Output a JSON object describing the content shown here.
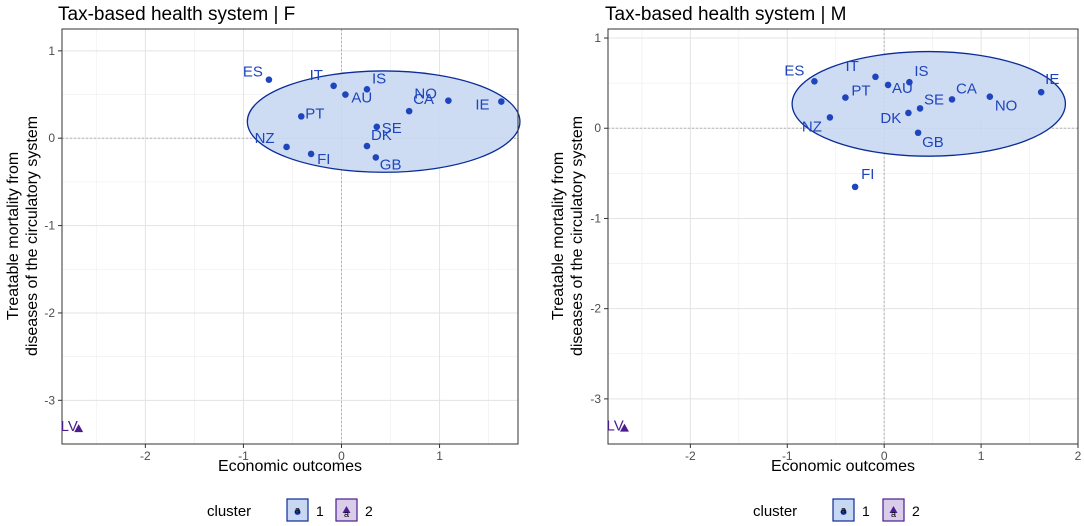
{
  "chart_data": [
    {
      "type": "scatter",
      "title": "Tax-based health system | F",
      "xlabel": "Economic outcomes",
      "ylabel": [
        "Treatable mortality from",
        "diseases of the circulatory system"
      ],
      "xlim": [
        -2.85,
        1.8
      ],
      "ylim": [
        -3.5,
        1.25
      ],
      "xticks": [
        -2,
        -1,
        0,
        1
      ],
      "yticks": [
        -3,
        -2,
        -1,
        0,
        1
      ],
      "ellipse": {
        "cluster": 1,
        "center": [
          0.43,
          0.19
        ],
        "radius_x": 1.39,
        "radius_y": 0.58
      },
      "points": [
        {
          "label": "ES",
          "x": -0.74,
          "y": 0.67,
          "cluster": 1
        },
        {
          "label": "IT",
          "x": -0.08,
          "y": 0.6,
          "cluster": 1
        },
        {
          "label": "IS",
          "x": 0.26,
          "y": 0.56,
          "cluster": 1
        },
        {
          "label": "NO",
          "x": 1.09,
          "y": 0.43,
          "cluster": 1
        },
        {
          "label": "AU",
          "x": 0.04,
          "y": 0.5,
          "cluster": 1
        },
        {
          "label": "PT",
          "x": -0.41,
          "y": 0.25,
          "cluster": 1
        },
        {
          "label": "CA",
          "x": 0.69,
          "y": 0.31,
          "cluster": 1
        },
        {
          "label": "IE",
          "x": 1.63,
          "y": 0.42,
          "cluster": 1
        },
        {
          "label": "NZ",
          "x": -0.56,
          "y": -0.1,
          "cluster": 1
        },
        {
          "label": "DK",
          "x": 0.26,
          "y": -0.09,
          "cluster": 1
        },
        {
          "label": "SE",
          "x": 0.36,
          "y": 0.13,
          "cluster": 1
        },
        {
          "label": "FI",
          "x": -0.31,
          "y": -0.18,
          "cluster": 1
        },
        {
          "label": "GB",
          "x": 0.35,
          "y": -0.22,
          "cluster": 1
        },
        {
          "label": "LV",
          "x": -2.68,
          "y": -3.33,
          "cluster": 2
        }
      ]
    },
    {
      "type": "scatter",
      "title": "Tax-based health system | M",
      "xlabel": "Economic outcomes",
      "ylabel": [
        "Treatable mortality from",
        "diseases of the circulatory system"
      ],
      "xlim": [
        -2.85,
        2.0
      ],
      "ylim": [
        -3.5,
        1.1
      ],
      "xticks": [
        -2,
        -1,
        0,
        1,
        2
      ],
      "yticks": [
        -3,
        -2,
        -1,
        0,
        1
      ],
      "ellipse": {
        "cluster": 1,
        "center": [
          0.46,
          0.27
        ],
        "radius_x": 1.41,
        "radius_y": 0.58
      },
      "points": [
        {
          "label": "ES",
          "x": -0.72,
          "y": 0.52,
          "cluster": 1
        },
        {
          "label": "IT",
          "x": -0.09,
          "y": 0.57,
          "cluster": 1
        },
        {
          "label": "IS",
          "x": 0.26,
          "y": 0.51,
          "cluster": 1
        },
        {
          "label": "IE",
          "x": 1.62,
          "y": 0.4,
          "cluster": 1
        },
        {
          "label": "PT",
          "x": -0.4,
          "y": 0.34,
          "cluster": 1
        },
        {
          "label": "AU",
          "x": 0.04,
          "y": 0.48,
          "cluster": 1
        },
        {
          "label": "CA",
          "x": 0.7,
          "y": 0.32,
          "cluster": 1
        },
        {
          "label": "SE",
          "x": 0.37,
          "y": 0.22,
          "cluster": 1
        },
        {
          "label": "NO",
          "x": 1.09,
          "y": 0.35,
          "cluster": 1
        },
        {
          "label": "NZ",
          "x": -0.56,
          "y": 0.12,
          "cluster": 1
        },
        {
          "label": "DK",
          "x": 0.25,
          "y": 0.17,
          "cluster": 1
        },
        {
          "label": "GB",
          "x": 0.35,
          "y": -0.05,
          "cluster": 1
        },
        {
          "label": "FI",
          "x": -0.3,
          "y": -0.65,
          "cluster": 1
        },
        {
          "label": "LV",
          "x": -2.68,
          "y": -3.33,
          "cluster": 2
        }
      ]
    }
  ],
  "legend": {
    "title": "cluster",
    "items": [
      "1",
      "2"
    ]
  },
  "colors": {
    "cluster1": "#1f45bd",
    "cluster2": "#4b1d8f",
    "ellipse_fill": "#c9d8f2",
    "ellipse_stroke": "#0b2c99",
    "grid_major": "#e3e3e3",
    "grid_minor": "#f1f1f1",
    "zero_line": "#b5b5b5",
    "legend2_fill": "#d9cdea"
  }
}
